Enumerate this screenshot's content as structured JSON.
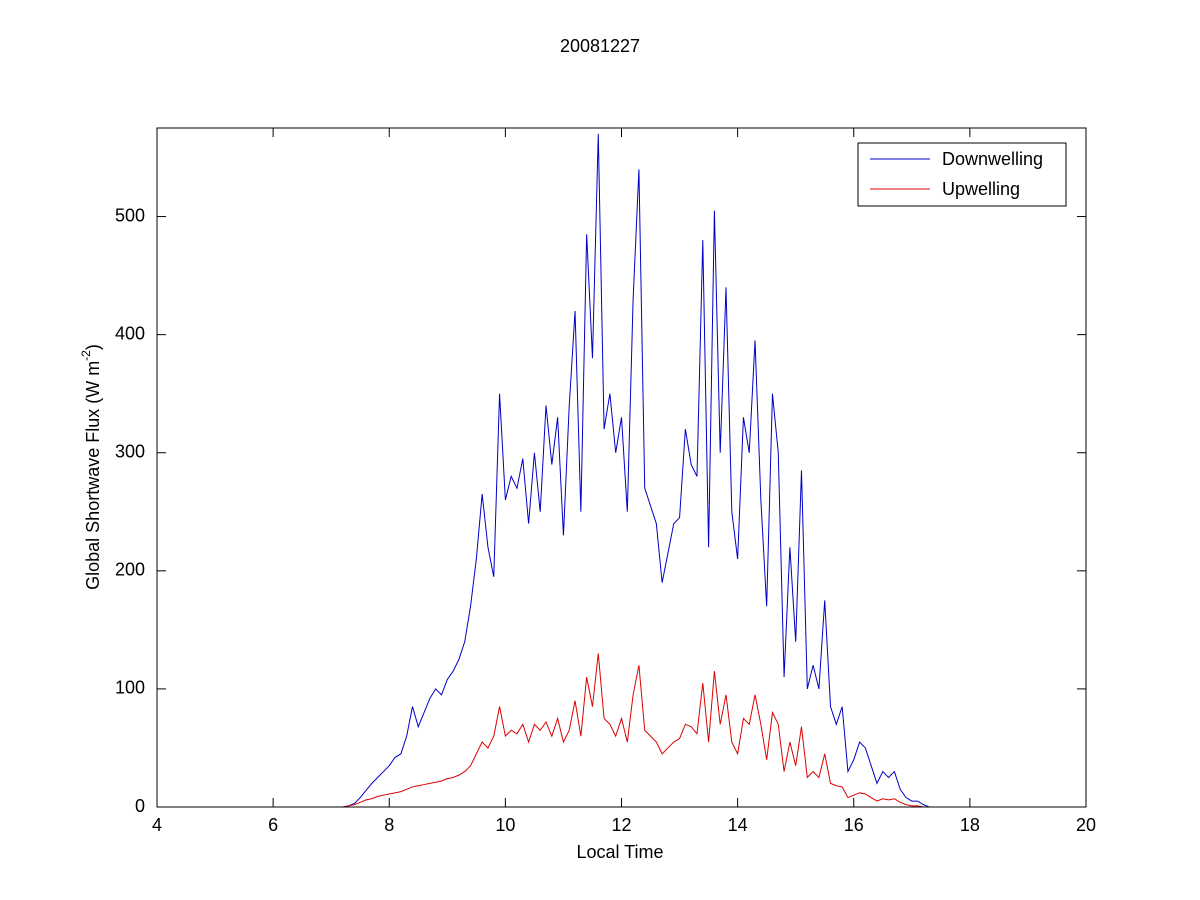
{
  "chart_data": {
    "type": "line",
    "title": "20081227",
    "xlabel": "Local Time",
    "ylabel": {
      "text": "Global Shortwave Flux (W m",
      "superscript": "-2",
      "end": ")"
    },
    "xlim": [
      4,
      20
    ],
    "xticks": [
      4,
      6,
      8,
      10,
      12,
      14,
      16,
      18,
      20
    ],
    "ylim": [
      0,
      575
    ],
    "yticks": [
      0,
      100,
      200,
      300,
      400,
      500
    ],
    "legend": "upper right",
    "grid": false,
    "x": [
      7.0,
      7.1,
      7.2,
      7.3,
      7.4,
      7.5,
      7.6,
      7.7,
      7.8,
      7.9,
      8.0,
      8.1,
      8.2,
      8.3,
      8.4,
      8.5,
      8.6,
      8.7,
      8.8,
      8.9,
      9.0,
      9.1,
      9.2,
      9.3,
      9.4,
      9.5,
      9.6,
      9.7,
      9.8,
      9.9,
      10.0,
      10.1,
      10.2,
      10.3,
      10.4,
      10.5,
      10.6,
      10.7,
      10.8,
      10.9,
      11.0,
      11.1,
      11.2,
      11.3,
      11.4,
      11.5,
      11.6,
      11.7,
      11.8,
      11.9,
      12.0,
      12.1,
      12.2,
      12.3,
      12.4,
      12.5,
      12.6,
      12.7,
      12.8,
      12.9,
      13.0,
      13.1,
      13.2,
      13.3,
      13.4,
      13.5,
      13.6,
      13.7,
      13.8,
      13.9,
      14.0,
      14.1,
      14.2,
      14.3,
      14.4,
      14.5,
      14.6,
      14.7,
      14.8,
      14.9,
      15.0,
      15.1,
      15.2,
      15.3,
      15.4,
      15.5,
      15.6,
      15.7,
      15.8,
      15.9,
      16.0,
      16.1,
      16.2,
      16.3,
      16.4,
      16.5,
      16.6,
      16.7,
      16.8,
      16.9,
      17.0,
      17.1,
      17.2,
      17.3,
      17.4,
      17.5
    ],
    "series": [
      {
        "name": "Downwelling",
        "color": "#0000c8",
        "values": [
          0,
          0,
          0,
          1,
          3,
          8,
          14,
          20,
          25,
          30,
          35,
          42,
          45,
          60,
          85,
          68,
          80,
          92,
          100,
          95,
          108,
          115,
          125,
          140,
          170,
          210,
          265,
          220,
          195,
          350,
          260,
          280,
          270,
          295,
          240,
          300,
          250,
          340,
          290,
          330,
          230,
          340,
          420,
          250,
          485,
          380,
          570,
          320,
          350,
          300,
          330,
          250,
          430,
          540,
          270,
          255,
          240,
          190,
          215,
          240,
          245,
          320,
          290,
          280,
          480,
          220,
          505,
          300,
          440,
          250,
          210,
          330,
          300,
          395,
          260,
          170,
          350,
          300,
          110,
          220,
          140,
          285,
          100,
          120,
          100,
          175,
          85,
          70,
          85,
          30,
          40,
          55,
          50,
          35,
          20,
          30,
          25,
          30,
          15,
          8,
          5,
          5,
          2,
          0,
          0,
          0
        ]
      },
      {
        "name": "Upwelling",
        "color": "#dc0000",
        "values": [
          0,
          0,
          0,
          1,
          2,
          4,
          6,
          7,
          9,
          10,
          11,
          12,
          13,
          15,
          17,
          18,
          19,
          20,
          21,
          22,
          24,
          25,
          27,
          30,
          35,
          45,
          55,
          50,
          60,
          85,
          60,
          65,
          62,
          70,
          55,
          70,
          65,
          72,
          60,
          75,
          55,
          65,
          90,
          60,
          110,
          85,
          130,
          75,
          70,
          60,
          75,
          55,
          95,
          120,
          65,
          60,
          55,
          45,
          50,
          55,
          58,
          70,
          68,
          62,
          105,
          55,
          115,
          70,
          95,
          55,
          45,
          75,
          70,
          95,
          70,
          40,
          80,
          70,
          30,
          55,
          35,
          68,
          25,
          30,
          25,
          45,
          20,
          18,
          17,
          8,
          10,
          12,
          11,
          8,
          5,
          7,
          6,
          7,
          4,
          2,
          1,
          1,
          0,
          0,
          0,
          0
        ]
      }
    ]
  }
}
